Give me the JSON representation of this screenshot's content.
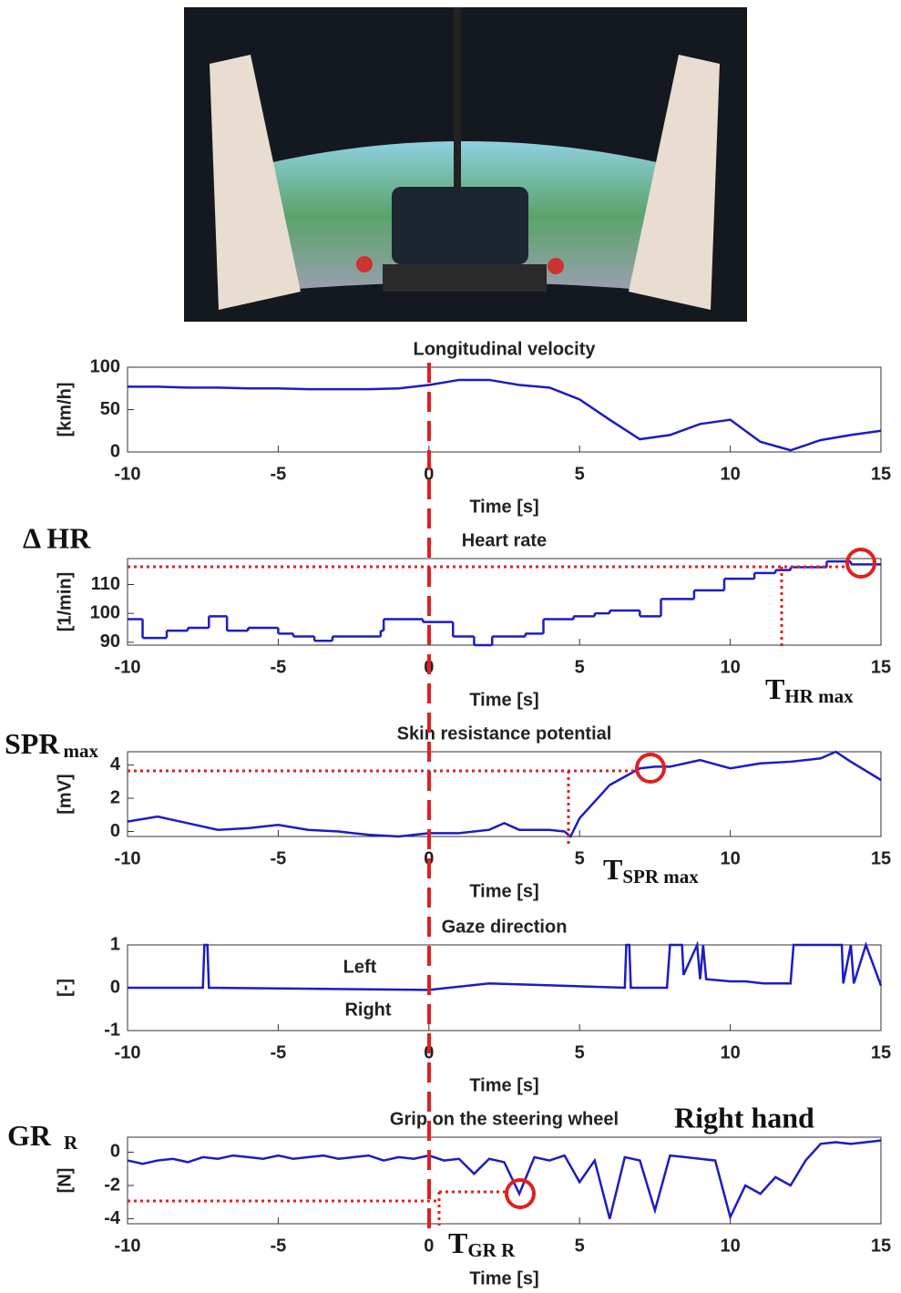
{
  "chart_data": [
    {
      "type": "line",
      "title": "Longitudinal velocity",
      "xlabel": "Time [s]",
      "ylabel": "[km/h]",
      "xlim": [
        -10,
        15
      ],
      "xticks": [
        -10,
        -5,
        0,
        5,
        10,
        15
      ],
      "ylim": [
        0,
        100
      ],
      "yticks": [
        0,
        50,
        100
      ],
      "x": [
        -10,
        -9,
        -8,
        -7,
        -6,
        -5,
        -4,
        -3,
        -2,
        -1,
        0,
        1,
        2,
        3,
        4,
        5,
        6,
        7,
        8,
        9,
        10,
        11,
        12,
        13,
        14,
        15
      ],
      "series": [
        {
          "color": "#1c1cc4",
          "values": [
            77,
            77,
            76,
            76,
            75,
            75,
            74,
            74,
            74,
            75,
            79,
            85,
            85,
            79,
            76,
            62,
            38,
            15,
            20,
            33,
            38,
            12,
            2,
            14,
            20,
            25
          ]
        }
      ]
    },
    {
      "type": "step",
      "title": "Heart rate",
      "xlabel": "Time [s]",
      "ylabel": "[1/min]",
      "xlim": [
        -10,
        15
      ],
      "xticks": [
        -10,
        -5,
        0,
        5,
        10,
        15
      ],
      "ylim": [
        89,
        119
      ],
      "yticks": [
        90,
        100,
        110
      ],
      "x": [
        -10,
        -9.5,
        -8.7,
        -8,
        -7.3,
        -6.7,
        -6,
        -5,
        -4.5,
        -3.8,
        -3.2,
        -2.2,
        -1.6,
        -1.5,
        -0.2,
        0.8,
        1.5,
        2.1,
        3.2,
        3.8,
        4.8,
        5.5,
        6,
        7,
        7.7,
        8.8,
        9.8,
        10.8,
        11.5,
        12,
        13.2,
        14,
        15
      ],
      "series": [
        {
          "color": "#1c1cc4",
          "values": [
            98,
            91.5,
            94,
            95,
            99,
            94,
            95,
            93,
            92,
            90.5,
            92,
            92,
            94,
            98,
            97,
            92,
            89,
            92,
            93,
            98,
            99,
            100,
            101,
            99,
            105,
            108,
            112,
            114,
            115,
            116,
            118,
            117,
            117
          ]
        }
      ]
    },
    {
      "type": "line",
      "title": "Skin resistance potential",
      "xlabel": "Time [s]",
      "ylabel": "[mV]",
      "xlim": [
        -10,
        15
      ],
      "xticks": [
        -10,
        -5,
        0,
        5,
        10,
        15
      ],
      "ylim": [
        -0.3,
        4.8
      ],
      "yticks": [
        0,
        2,
        4
      ],
      "x": [
        -10,
        -9,
        -8,
        -7,
        -6,
        -5,
        -4,
        -3,
        -2,
        -1,
        0,
        1,
        2,
        2.5,
        3,
        4,
        4.5,
        4.7,
        5,
        6,
        7,
        7.5,
        8,
        9,
        10,
        11,
        12,
        13,
        13.5,
        14,
        15
      ],
      "series": [
        {
          "color": "#1c1cc4",
          "values": [
            0.6,
            0.9,
            0.5,
            0.1,
            0.2,
            0.4,
            0.1,
            0,
            -0.2,
            -0.3,
            -0.1,
            -0.1,
            0.1,
            0.5,
            0.1,
            0.1,
            0,
            -0.3,
            0.8,
            2.8,
            3.8,
            3.9,
            3.9,
            4.3,
            3.8,
            4.1,
            4.2,
            4.4,
            4.8,
            4.2,
            3.1
          ]
        }
      ]
    },
    {
      "type": "line",
      "title": "Gaze direction",
      "xlabel": "Time [s]",
      "ylabel": "[-]",
      "xlim": [
        -10,
        15
      ],
      "xticks": [
        -10,
        -5,
        0,
        5,
        10,
        15
      ],
      "ylim": [
        -1,
        1
      ],
      "yticks": [
        -1,
        0,
        1
      ],
      "annotations": [
        "Left",
        "Right"
      ],
      "x": [
        -10,
        -7.5,
        -7.45,
        -7.35,
        -7.3,
        0,
        2,
        6.5,
        6.55,
        6.65,
        6.7,
        7.9,
        8,
        8.4,
        8.45,
        8.9,
        9,
        9.1,
        9.2,
        10,
        10.5,
        11.1,
        12,
        12.1,
        13.7,
        13.75,
        14,
        14.1,
        14.5,
        15
      ],
      "series": [
        {
          "color": "#1c1cc4",
          "values": [
            0,
            0,
            1,
            1,
            0,
            -0.05,
            0.1,
            0,
            1,
            1,
            0,
            0,
            1,
            1,
            0.3,
            1,
            0.2,
            1,
            0.2,
            0.15,
            0.15,
            0.1,
            0.1,
            1,
            1,
            0.1,
            1,
            0.1,
            1,
            0.05
          ]
        }
      ]
    },
    {
      "type": "line",
      "title": "Grip on the steering wheel",
      "xlabel": "Time [s]",
      "ylabel": "[N]",
      "xlim": [
        -10,
        15
      ],
      "xticks": [
        -10,
        -5,
        0,
        5,
        10,
        15
      ],
      "ylim": [
        -4.3,
        0.9
      ],
      "yticks": [
        -4,
        -2,
        0
      ],
      "x": [
        -10,
        -9.5,
        -9,
        -8.5,
        -8,
        -7.5,
        -7,
        -6.5,
        -6,
        -5.5,
        -5,
        -4.5,
        -4,
        -3.5,
        -3,
        -2.5,
        -2,
        -1.5,
        -1,
        -0.5,
        0,
        0.5,
        1,
        1.5,
        2,
        2.5,
        3,
        3.5,
        4,
        4.5,
        5,
        5.5,
        6,
        6.5,
        7,
        7.5,
        8,
        8.5,
        9,
        9.5,
        10,
        10.5,
        11,
        11.5,
        12,
        12.5,
        13,
        13.5,
        14,
        14.5,
        15
      ],
      "series": [
        {
          "color": "#1c1cc4",
          "values": [
            -0.5,
            -0.7,
            -0.5,
            -0.4,
            -0.6,
            -0.3,
            -0.4,
            -0.2,
            -0.3,
            -0.4,
            -0.2,
            -0.4,
            -0.3,
            -0.2,
            -0.4,
            -0.3,
            -0.2,
            -0.5,
            -0.3,
            -0.4,
            -0.2,
            -0.5,
            -0.4,
            -1.3,
            -0.4,
            -0.6,
            -2.5,
            -0.3,
            -0.5,
            -0.2,
            -1.8,
            -0.5,
            -4.0,
            -0.3,
            -0.5,
            -3.5,
            -0.2,
            -0.3,
            -0.4,
            -0.5,
            -3.9,
            -2.0,
            -2.5,
            -1.5,
            -2.0,
            -0.5,
            0.5,
            0.6,
            0.5,
            0.6,
            0.7
          ]
        }
      ]
    }
  ],
  "figure_labels": {
    "delta_hr": "Δ HR",
    "spr_max": {
      "main": "SPR",
      "sub": "max"
    },
    "t_hr_max": {
      "main": "T",
      "sub": "HR max"
    },
    "t_spr_max": {
      "main": "T",
      "sub": "SPR max"
    },
    "gr_r": {
      "main": "GR",
      "sub": "R"
    },
    "right_hand": "Right hand",
    "t_gr_r": {
      "main": "T",
      "sub": "GR R"
    }
  }
}
